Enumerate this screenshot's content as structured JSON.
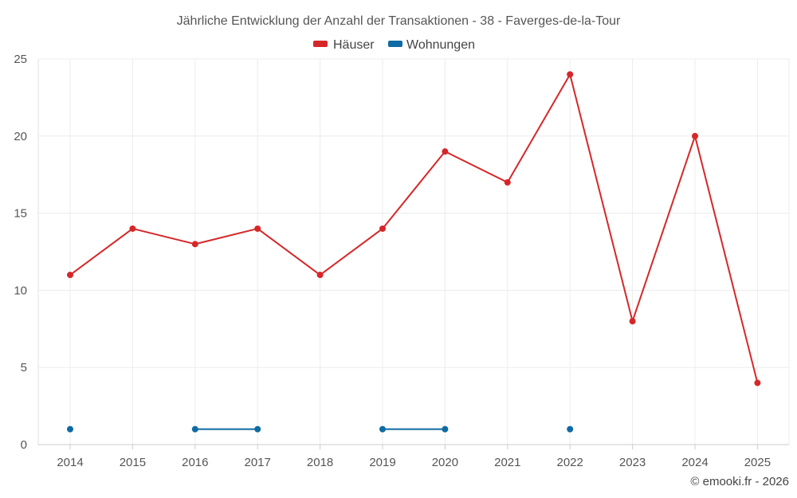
{
  "chart_data": {
    "type": "line",
    "title": "Jährliche Entwicklung der Anzahl der Transaktionen - 38 - Faverges-de-la-Tour",
    "categories": [
      "2014",
      "2015",
      "2016",
      "2017",
      "2018",
      "2019",
      "2020",
      "2021",
      "2022",
      "2023",
      "2024",
      "2025"
    ],
    "series": [
      {
        "name": "Häuser",
        "color": "#d62728",
        "values": [
          11,
          14,
          13,
          14,
          11,
          14,
          19,
          17,
          24,
          8,
          20,
          4
        ]
      },
      {
        "name": "Wohnungen",
        "color": "#0e6aa3",
        "values": [
          1,
          null,
          1,
          1,
          null,
          1,
          1,
          null,
          1,
          null,
          null,
          null
        ]
      }
    ],
    "ylim": [
      0,
      25
    ],
    "yticks": [
      0,
      5,
      10,
      15,
      20,
      25
    ],
    "xlabel": "",
    "ylabel": "",
    "grid": true,
    "legend": "top-center"
  },
  "credit": "© emooki.fr - 2026"
}
